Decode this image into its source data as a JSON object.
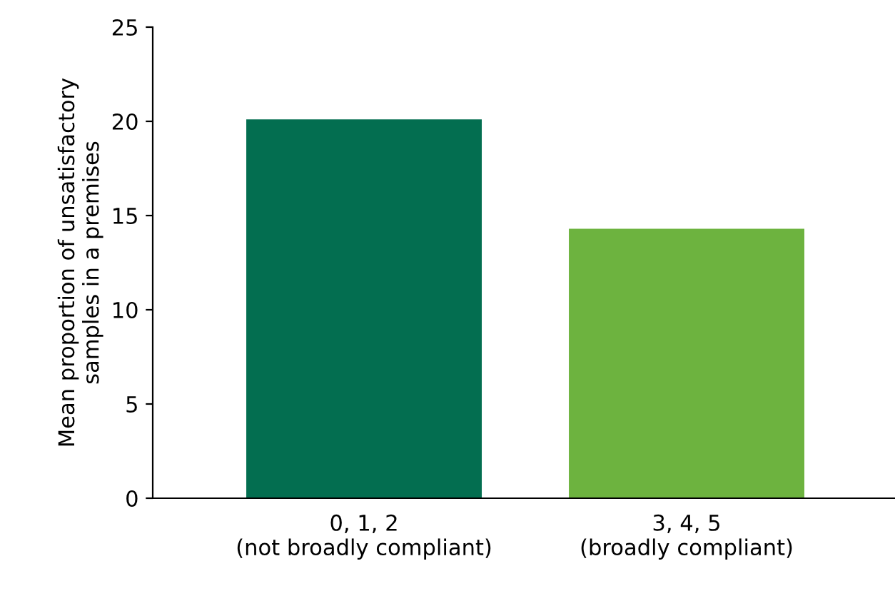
{
  "chart_data": {
    "type": "bar",
    "ylabel": "Mean proportion of unsatisfactory\nsamples in a premises",
    "categories": [
      "0, 1, 2\n(not broadly compliant)",
      "3, 4, 5\n(broadly compliant)"
    ],
    "values": [
      20.1,
      14.3
    ],
    "colors": [
      "#036e50",
      "#6db33f"
    ],
    "ylim": [
      0,
      25
    ],
    "yticks": [
      0,
      5,
      10,
      15,
      20,
      25
    ],
    "grid": false,
    "legend": false
  }
}
